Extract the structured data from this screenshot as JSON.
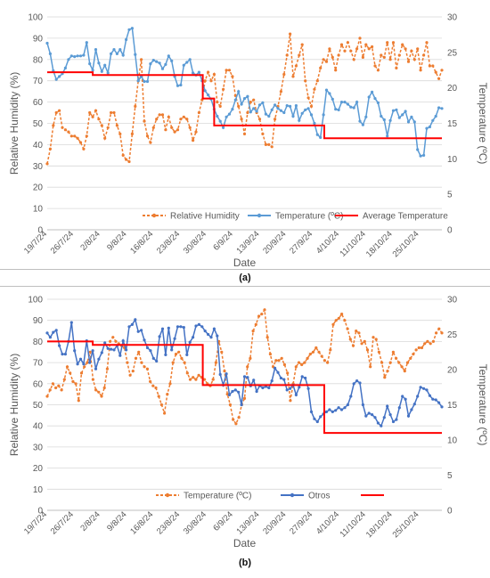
{
  "captions": [
    "(a)",
    "(b)"
  ],
  "chart_data": [
    {
      "type": "line",
      "ylabel": "Relative Humidity (%)",
      "y2label": "Temperature (ºC)",
      "xlabel": "Date",
      "ylim": [
        0,
        100
      ],
      "y2lim": [
        0,
        30
      ],
      "yticks": [
        0,
        10,
        20,
        30,
        40,
        50,
        60,
        70,
        80,
        90,
        100
      ],
      "y2ticks": [
        0,
        5,
        10,
        15,
        20,
        25,
        30
      ],
      "xrange": [
        "2024-07-19",
        "2024-10-31"
      ],
      "xtick_labels": [
        "19/7/24",
        "26/7/24",
        "2/8/24",
        "9/8/24",
        "16/8/24",
        "23/8/24",
        "30/8/24",
        "6/9/24",
        "13/9/24",
        "20/9/24",
        "27/9/24",
        "4/10/24",
        "11/10/24",
        "18/10/24",
        "25/10/24"
      ],
      "xtick_dates": [
        "2024-07-19",
        "2024-07-26",
        "2024-08-02",
        "2024-08-09",
        "2024-08-16",
        "2024-08-23",
        "2024-08-30",
        "2024-09-06",
        "2024-09-13",
        "2024-09-20",
        "2024-09-27",
        "2024-10-04",
        "2024-10-11",
        "2024-10-18",
        "2024-10-25"
      ],
      "grid": true,
      "legend_position": "bottom",
      "series": [
        {
          "name": "Relative Humidity",
          "axis": "left",
          "color": "#ED7D31",
          "style": "dashed-marker",
          "values": [
            31,
            38,
            49,
            55,
            56,
            48,
            47,
            46,
            44,
            44,
            43,
            41,
            38,
            44,
            55,
            53,
            56,
            52,
            49,
            43,
            48,
            55,
            55,
            49,
            45,
            35,
            33,
            32,
            45,
            58,
            70,
            80,
            51,
            44,
            41,
            48,
            52,
            54,
            54,
            47,
            53,
            48,
            46,
            47,
            52,
            53,
            52,
            48,
            42,
            46,
            55,
            61,
            70,
            74,
            70,
            73,
            60,
            58,
            66,
            75,
            75,
            72,
            63,
            58,
            52,
            45,
            55,
            60,
            61,
            55,
            52,
            45,
            40,
            40,
            39,
            52,
            58,
            65,
            73,
            82,
            92,
            72,
            77,
            82,
            87,
            70,
            62,
            58,
            66,
            70,
            76,
            80,
            79,
            85,
            81,
            75,
            82,
            87,
            84,
            88,
            84,
            80,
            85,
            90,
            81,
            87,
            85,
            86,
            77,
            75,
            82,
            81,
            88,
            80,
            88,
            76,
            82,
            87,
            85,
            79,
            84,
            80,
            85,
            75,
            82,
            88,
            77,
            77,
            74,
            71,
            75
          ]
        },
        {
          "name": "Temperature (ºC)",
          "axis": "right",
          "color": "#5B9BD5",
          "style": "solid-marker",
          "values": [
            26.3,
            24.8,
            22.4,
            21.2,
            21.6,
            22.0,
            22.8,
            24.0,
            24.5,
            24.4,
            24.5,
            24.5,
            24.6,
            26.4,
            23.4,
            22.5,
            25.4,
            23.5,
            22.3,
            23.2,
            22.1,
            24.8,
            25.4,
            24.8,
            25.4,
            24.6,
            26.8,
            28.2,
            28.4,
            24.7,
            21.0,
            21.6,
            20.9,
            20.9,
            23.4,
            23.9,
            23.7,
            23.5,
            22.7,
            23.3,
            24.5,
            23.8,
            21.6,
            20.3,
            20.4,
            23.2,
            23.6,
            24.0,
            22.1,
            21.8,
            22.2,
            21.0,
            19.6,
            19.0,
            18.4,
            17.0,
            16.0,
            15.3,
            14.4,
            15.9,
            16.3,
            17.0,
            18.3,
            19.5,
            17.7,
            18.5,
            18.8,
            16.6,
            17.1,
            16.7,
            17.6,
            17.9,
            16.3,
            16.0,
            16.9,
            17.6,
            17.1,
            16.8,
            16.5,
            17.5,
            17.4,
            16.0,
            17.5,
            15.4,
            16.4,
            16.9,
            17.1,
            16.2,
            15.0,
            13.4,
            13.0,
            16.2,
            19.7,
            19.2,
            18.4,
            17.0,
            16.9,
            18.0,
            18.0,
            17.7,
            17.3,
            17.2,
            18.0,
            15.3,
            14.8,
            15.9,
            18.7,
            19.4,
            18.5,
            17.9,
            16.0,
            15.5,
            13.2,
            15.4,
            16.8,
            16.9,
            15.8,
            16.2,
            16.7,
            15.2,
            15.9,
            15.2,
            11.3,
            10.4,
            10.5,
            14.3,
            14.5,
            15.4,
            16.0,
            17.2,
            17.1
          ]
        },
        {
          "name": "Average Temperature",
          "axis": "right",
          "color": "#FF0000",
          "style": "step",
          "steps": [
            {
              "from": "2024-07-19",
              "to": "2024-07-31",
              "value": 22.2
            },
            {
              "from": "2024-07-31",
              "to": "2024-08-29",
              "value": 21.8
            },
            {
              "from": "2024-08-29",
              "to": "2024-09-01",
              "value": 18.5
            },
            {
              "from": "2024-09-01",
              "to": "2024-09-30",
              "value": 14.7
            },
            {
              "from": "2024-09-30",
              "to": "2024-10-31",
              "value": 12.9
            }
          ]
        }
      ]
    },
    {
      "type": "line",
      "ylabel": "Relative Humidity (%)",
      "y2label": "Temperature (ºC)",
      "xlabel": "Date",
      "ylim": [
        0,
        100
      ],
      "y2lim": [
        0,
        30
      ],
      "yticks": [
        0,
        10,
        20,
        30,
        40,
        50,
        60,
        70,
        80,
        90,
        100
      ],
      "y2ticks": [
        0,
        5,
        10,
        15,
        20,
        25,
        30
      ],
      "xrange": [
        "2024-07-19",
        "2024-10-31"
      ],
      "xtick_labels": [
        "19/7/24",
        "26/7/24",
        "2/8/24",
        "9/8/24",
        "16/8/24",
        "23/8/24",
        "30/8/24",
        "6/9/24",
        "13/9/24",
        "20/9/24",
        "27/9/24",
        "4/10/24",
        "11/10/24",
        "18/10/24",
        "25/10/24"
      ],
      "xtick_dates": [
        "2024-07-19",
        "2024-07-26",
        "2024-08-02",
        "2024-08-09",
        "2024-08-16",
        "2024-08-23",
        "2024-08-30",
        "2024-09-06",
        "2024-09-13",
        "2024-09-20",
        "2024-09-27",
        "2024-10-04",
        "2024-10-11",
        "2024-10-18",
        "2024-10-25"
      ],
      "grid": true,
      "legend_position": "bottom",
      "series": [
        {
          "name": "Temperature (ºC)",
          "axis": "left",
          "color": "#ED7D31",
          "style": "dashed-marker",
          "values": [
            54,
            57,
            60,
            58,
            59,
            57,
            62,
            68,
            65,
            61,
            60,
            52,
            65,
            68,
            70,
            75,
            62,
            57,
            56,
            54,
            58,
            67,
            80,
            82,
            80,
            79,
            78,
            77,
            70,
            64,
            66,
            72,
            75,
            70,
            68,
            67,
            61,
            59,
            58,
            54,
            50,
            46,
            55,
            60,
            70,
            74,
            75,
            72,
            70,
            65,
            62,
            63,
            62,
            64,
            63,
            62,
            60,
            59,
            62,
            70,
            80,
            75,
            66,
            55,
            50,
            43,
            41,
            44,
            50,
            53,
            68,
            72,
            85,
            88,
            92,
            93,
            95,
            82,
            74,
            68,
            71,
            71,
            72,
            69,
            65,
            52,
            60,
            68,
            70,
            69,
            70,
            72,
            74,
            75,
            77,
            75,
            73,
            71,
            70,
            76,
            88,
            90,
            91,
            93,
            90,
            86,
            81,
            78,
            85,
            84,
            79,
            80,
            76,
            68,
            82,
            81,
            75,
            70,
            63,
            66,
            70,
            75,
            72,
            70,
            68,
            66,
            70,
            72,
            74,
            76,
            77,
            77,
            79,
            80,
            79,
            80,
            84,
            86,
            84
          ]
        },
        {
          "name": "Otros",
          "axis": "right",
          "color": "#4472C4",
          "style": "solid-marker",
          "values": [
            25.2,
            24.6,
            25.3,
            25.6,
            23.4,
            22.2,
            22.2,
            24.0,
            26.7,
            22.7,
            20.8,
            21.5,
            20.8,
            24.1,
            21.0,
            22.7,
            20.1,
            21.5,
            22.4,
            23.8,
            23.0,
            22.9,
            22.8,
            23.4,
            22.0,
            24.1,
            22.8,
            26.1,
            26.4,
            27.1,
            25.4,
            25.6,
            24.2,
            23.1,
            22.7,
            21.6,
            21.2,
            24.7,
            25.8,
            22.1,
            25.9,
            22.8,
            24.4,
            26.1,
            26.1,
            26.0,
            22.1,
            23.9,
            24.6,
            26.2,
            26.4,
            26.1,
            25.5,
            25.0,
            24.6,
            25.8,
            24.8,
            19.3,
            17.8,
            19.4,
            16.4,
            16.9,
            17.1,
            16.8,
            15.0,
            19.0,
            18.9,
            17.7,
            18.5,
            16.9,
            17.7,
            17.4,
            17.6,
            17.4,
            18.4,
            20.2,
            19.6,
            18.8,
            18.6,
            17.1,
            17.3,
            17.8,
            16.4,
            17.5,
            19.0,
            18.8,
            17.3,
            14.0,
            13.0,
            12.6,
            13.3,
            13.7,
            14.0,
            14.3,
            14.0,
            14.2,
            14.6,
            14.3,
            14.6,
            15.0,
            16.2,
            18.0,
            18.4,
            18.1,
            15.0,
            13.4,
            13.8,
            13.6,
            13.2,
            12.4,
            12.0,
            13.2,
            14.8,
            13.6,
            12.6,
            12.9,
            14.6,
            16.2,
            15.8,
            13.4,
            14.3,
            15.1,
            16.2,
            17.5,
            17.3,
            17.1,
            16.3,
            15.8,
            15.7,
            15.3,
            14.7
          ]
        },
        {
          "name": "",
          "axis": "right",
          "color": "#FF0000",
          "style": "step",
          "steps": [
            {
              "from": "2024-07-19",
              "to": "2024-07-31",
              "value": 24.0
            },
            {
              "from": "2024-07-31",
              "to": "2024-08-29",
              "value": 23.5
            },
            {
              "from": "2024-08-29",
              "to": "2024-09-30",
              "value": 17.8
            },
            {
              "from": "2024-09-30",
              "to": "2024-10-31",
              "value": 11.0
            }
          ]
        }
      ]
    }
  ]
}
